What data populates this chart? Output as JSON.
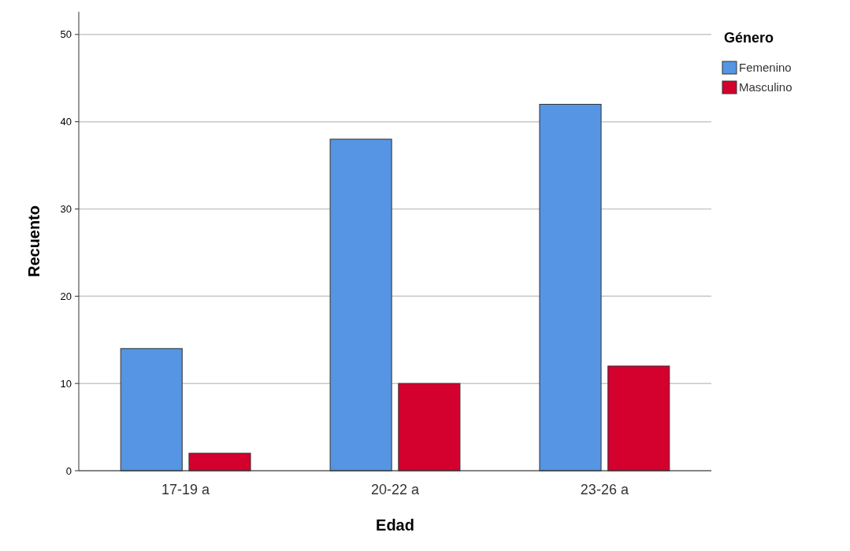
{
  "chart_data": {
    "type": "bar",
    "xlabel": "Edad",
    "ylabel": "Recuento",
    "legend_title": "Género",
    "categories": [
      "17-19 a",
      "20-22 a",
      "23-26 a"
    ],
    "series": [
      {
        "name": "Femenino",
        "color": "#5595e3",
        "values": [
          14,
          38,
          42
        ]
      },
      {
        "name": "Masculino",
        "color": "#d4002e",
        "values": [
          2,
          10,
          12
        ]
      }
    ],
    "ylim": [
      0,
      52.6
    ],
    "yticks": [
      0,
      10,
      20,
      30,
      40,
      50
    ],
    "grid": "y",
    "legend": "top right"
  }
}
